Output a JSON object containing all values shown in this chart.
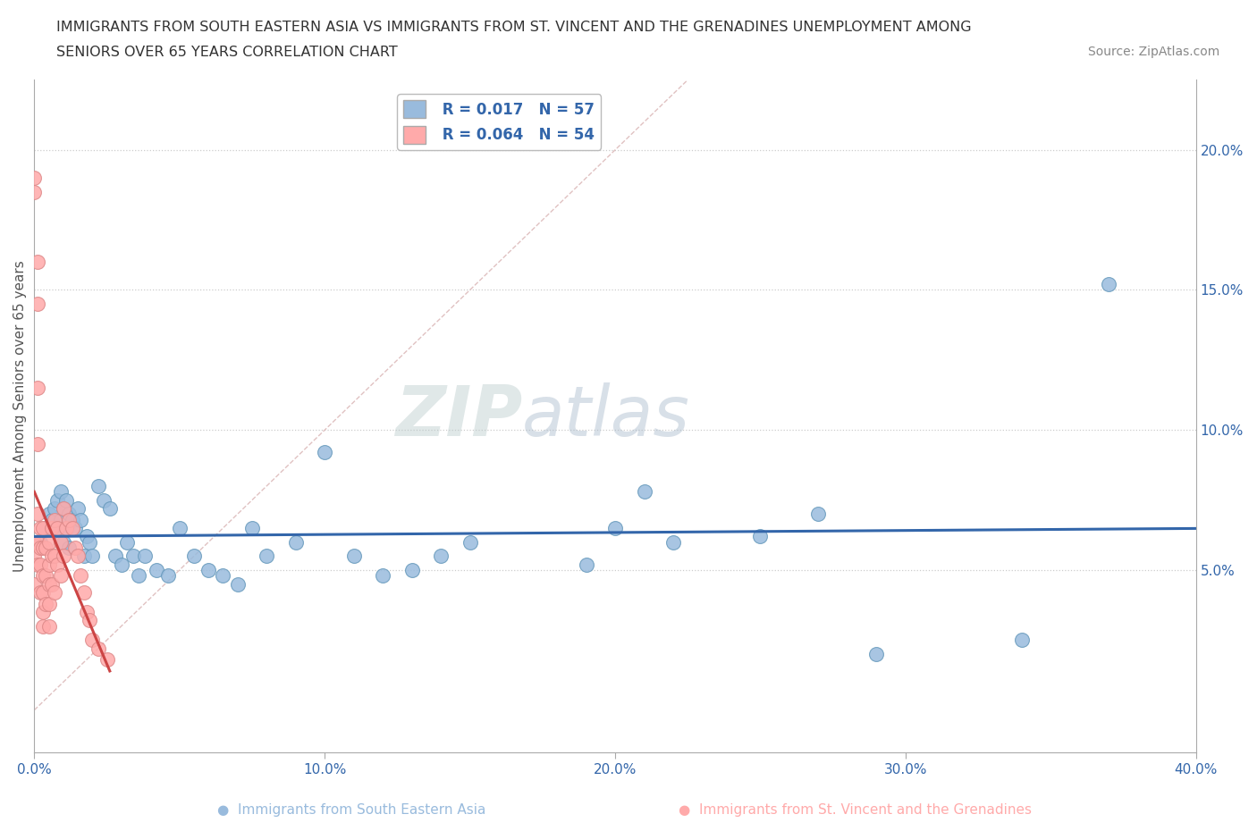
{
  "title_line1": "IMMIGRANTS FROM SOUTH EASTERN ASIA VS IMMIGRANTS FROM ST. VINCENT AND THE GRENADINES UNEMPLOYMENT AMONG",
  "title_line2": "SENIORS OVER 65 YEARS CORRELATION CHART",
  "source": "Source: ZipAtlas.com",
  "ylabel": "Unemployment Among Seniors over 65 years",
  "xmin": 0.0,
  "xmax": 0.4,
  "ymin": -0.015,
  "ymax": 0.225,
  "xticks": [
    0.0,
    0.1,
    0.2,
    0.3,
    0.4
  ],
  "yticks": [
    0.05,
    0.1,
    0.15,
    0.2
  ],
  "xtick_labels": [
    "0.0%",
    "10.0%",
    "20.0%",
    "30.0%",
    "40.0%"
  ],
  "ytick_labels": [
    "5.0%",
    "10.0%",
    "15.0%",
    "20.0%"
  ],
  "blue_color": "#99BBDD",
  "pink_color": "#FFAAAA",
  "blue_edge_color": "#6699BB",
  "pink_edge_color": "#DD8888",
  "blue_line_color": "#3366AA",
  "pink_line_color": "#CC4444",
  "diag_color": "#DDBBBB",
  "watermark_color": "#CCDDED",
  "R_blue": 0.017,
  "N_blue": 57,
  "R_pink": 0.064,
  "N_pink": 54,
  "blue_x": [
    0.002,
    0.004,
    0.005,
    0.006,
    0.007,
    0.008,
    0.008,
    0.009,
    0.009,
    0.01,
    0.01,
    0.011,
    0.011,
    0.012,
    0.012,
    0.013,
    0.014,
    0.015,
    0.016,
    0.017,
    0.018,
    0.019,
    0.02,
    0.022,
    0.024,
    0.026,
    0.028,
    0.03,
    0.032,
    0.034,
    0.036,
    0.038,
    0.042,
    0.046,
    0.05,
    0.055,
    0.06,
    0.065,
    0.07,
    0.075,
    0.08,
    0.09,
    0.1,
    0.11,
    0.12,
    0.13,
    0.14,
    0.15,
    0.19,
    0.2,
    0.21,
    0.22,
    0.25,
    0.27,
    0.29,
    0.34,
    0.37
  ],
  "blue_y": [
    0.06,
    0.065,
    0.07,
    0.068,
    0.072,
    0.075,
    0.065,
    0.078,
    0.068,
    0.072,
    0.06,
    0.075,
    0.065,
    0.07,
    0.058,
    0.068,
    0.065,
    0.072,
    0.068,
    0.055,
    0.062,
    0.06,
    0.055,
    0.08,
    0.075,
    0.072,
    0.055,
    0.052,
    0.06,
    0.055,
    0.048,
    0.055,
    0.05,
    0.048,
    0.065,
    0.055,
    0.05,
    0.048,
    0.045,
    0.065,
    0.055,
    0.06,
    0.092,
    0.055,
    0.048,
    0.05,
    0.055,
    0.06,
    0.052,
    0.065,
    0.078,
    0.06,
    0.062,
    0.07,
    0.02,
    0.025,
    0.152
  ],
  "pink_x": [
    0.0,
    0.0,
    0.0,
    0.0,
    0.0,
    0.001,
    0.001,
    0.001,
    0.001,
    0.001,
    0.001,
    0.001,
    0.002,
    0.002,
    0.002,
    0.002,
    0.003,
    0.003,
    0.003,
    0.003,
    0.003,
    0.003,
    0.004,
    0.004,
    0.004,
    0.005,
    0.005,
    0.005,
    0.005,
    0.005,
    0.006,
    0.006,
    0.006,
    0.007,
    0.007,
    0.007,
    0.008,
    0.008,
    0.009,
    0.009,
    0.01,
    0.01,
    0.011,
    0.012,
    0.013,
    0.014,
    0.015,
    0.016,
    0.017,
    0.018,
    0.019,
    0.02,
    0.022,
    0.025
  ],
  "pink_y": [
    0.19,
    0.185,
    0.06,
    0.055,
    0.045,
    0.16,
    0.145,
    0.115,
    0.095,
    0.07,
    0.06,
    0.052,
    0.065,
    0.058,
    0.052,
    0.042,
    0.065,
    0.058,
    0.048,
    0.042,
    0.035,
    0.03,
    0.058,
    0.048,
    0.038,
    0.06,
    0.052,
    0.045,
    0.038,
    0.03,
    0.065,
    0.055,
    0.045,
    0.068,
    0.055,
    0.042,
    0.065,
    0.052,
    0.06,
    0.048,
    0.072,
    0.055,
    0.065,
    0.068,
    0.065,
    0.058,
    0.055,
    0.048,
    0.042,
    0.035,
    0.032,
    0.025,
    0.022,
    0.018
  ]
}
